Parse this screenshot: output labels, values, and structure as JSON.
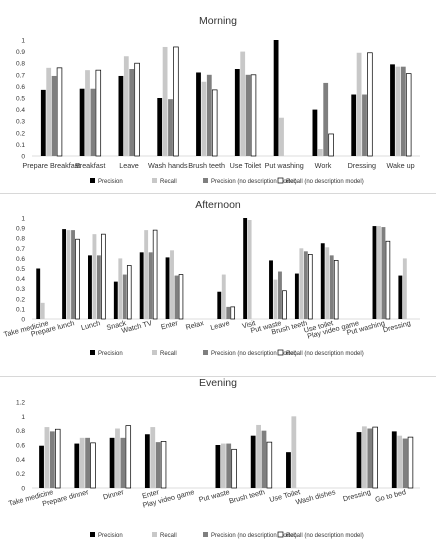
{
  "legend_labels": [
    "Precision",
    "Recall",
    "Precision (no description model)",
    "Recall (no description model)"
  ],
  "series_style": [
    {
      "fill": "#000000",
      "stroke": "none"
    },
    {
      "fill": "#c8c8c8",
      "stroke": "none"
    },
    {
      "fill": "#7f7f7f",
      "stroke": "none"
    },
    {
      "fill": "#ffffff",
      "stroke": "#000000"
    }
  ],
  "chart_data": [
    {
      "type": "bar",
      "title": "Morning",
      "ylim": [
        0,
        1
      ],
      "yticks": [
        "0",
        "0.1",
        "0.2",
        "0.3",
        "0.4",
        "0.5",
        "0.6",
        "0.7",
        "0.8",
        "0.9",
        "1"
      ],
      "legend": "bottom",
      "grid": false,
      "categories": [
        "Prepare Breakfast",
        "Breakfast",
        "Leave",
        "Wash hands",
        "Brush teeth",
        "Use Toilet",
        "Put washing",
        "Work",
        "Dressing",
        "Wake up"
      ],
      "series": [
        {
          "name": "Precision",
          "values": [
            0.57,
            0.58,
            0.69,
            0.5,
            0.72,
            0.75,
            1.0,
            0.4,
            0.53,
            0.79
          ]
        },
        {
          "name": "Recall",
          "values": [
            0.76,
            0.74,
            0.86,
            0.94,
            0.64,
            0.9,
            0.33,
            0.06,
            0.89,
            0.77
          ]
        },
        {
          "name": "Precision (no description model)",
          "values": [
            0.69,
            0.58,
            0.75,
            0.49,
            0.7,
            0.7,
            0,
            0.63,
            0.53,
            0.77
          ]
        },
        {
          "name": "Recall (no description model)",
          "values": [
            0.76,
            0.74,
            0.8,
            0.94,
            0.57,
            0.7,
            0,
            0.19,
            0.89,
            0.71
          ]
        }
      ]
    },
    {
      "type": "bar",
      "title": "Afternoon",
      "ylim": [
        0,
        1
      ],
      "yticks": [
        "0",
        "0.1",
        "0.2",
        "0.3",
        "0.4",
        "0.5",
        "0.6",
        "0.7",
        "0.8",
        "0.9",
        "1"
      ],
      "legend": "bottom",
      "grid": false,
      "categories": [
        "Take medicine",
        "Prepare lunch",
        "Lunch",
        "Snack",
        "Watch TV",
        "Enter",
        "Relax",
        "Leave",
        "Visit",
        "Put waste",
        "Brush teeth",
        "Use toilet",
        "Play video game",
        "Put washing",
        "Dressing"
      ],
      "series": [
        {
          "name": "Precision",
          "values": [
            0.5,
            0.89,
            0.63,
            0.37,
            0.66,
            0.61,
            0,
            0.27,
            1.0,
            0.58,
            0.45,
            0.75,
            0,
            0.92,
            0.43
          ]
        },
        {
          "name": "Recall",
          "values": [
            0.16,
            0.88,
            0.84,
            0.6,
            0.88,
            0.68,
            0,
            0.44,
            0.98,
            0.39,
            0.7,
            0.71,
            0,
            0.92,
            0.6
          ]
        },
        {
          "name": "Precision (no description model)",
          "values": [
            0,
            0.88,
            0.63,
            0.44,
            0.66,
            0.43,
            0,
            0.12,
            0,
            0.47,
            0.67,
            0.63,
            0,
            0.91,
            0
          ]
        },
        {
          "name": "Recall (no description model)",
          "values": [
            0,
            0.79,
            0.84,
            0.53,
            0.88,
            0.44,
            0,
            0.12,
            0,
            0.28,
            0.64,
            0.58,
            0,
            0.77,
            0
          ]
        }
      ]
    },
    {
      "type": "bar",
      "title": "Evening",
      "ylim": [
        0,
        1.2
      ],
      "yticks": [
        "0",
        "0.2",
        "0.4",
        "0.6",
        "0.8",
        "1",
        "1.2"
      ],
      "legend": "bottom",
      "grid": false,
      "categories": [
        "Take medicine",
        "Prepare dinner",
        "Dinner",
        "Enter",
        "Play video game",
        "Put waste",
        "Brush teeth",
        "Use Toilet",
        "Wash dishes",
        "Dressing",
        "Go to bed"
      ],
      "series": [
        {
          "name": "Precision",
          "values": [
            0.59,
            0.62,
            0.7,
            0.75,
            0,
            0.6,
            0.73,
            0.5,
            0,
            0.78,
            0.79
          ]
        },
        {
          "name": "Recall",
          "values": [
            0.85,
            0.7,
            0.83,
            0.85,
            0,
            0.62,
            0.88,
            1.0,
            0,
            0.86,
            0.73
          ]
        },
        {
          "name": "Precision (no description model)",
          "values": [
            0.79,
            0.7,
            0.7,
            0.64,
            0,
            0.62,
            0.8,
            0,
            0,
            0.83,
            0.69
          ]
        },
        {
          "name": "Recall (no description model)",
          "values": [
            0.82,
            0.63,
            0.87,
            0.65,
            0,
            0.54,
            0.64,
            0,
            0,
            0.85,
            0.71
          ]
        }
      ]
    }
  ]
}
